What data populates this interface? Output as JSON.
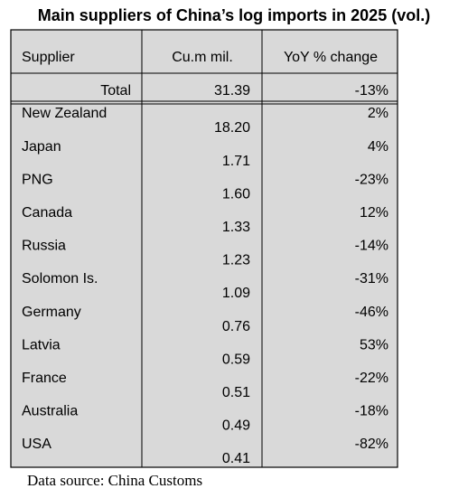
{
  "title": "Main suppliers of China’s log imports in 2025 (vol.)",
  "table": {
    "header": [
      "Supplier",
      "Cu.m mil.",
      "YoY % change"
    ],
    "total": [
      "Total",
      "31.39",
      "-13%"
    ],
    "rows": [
      [
        "New Zealand",
        "18.20",
        "2%"
      ],
      [
        "Japan",
        "1.71",
        "4%"
      ],
      [
        "PNG",
        "1.60",
        "-23%"
      ],
      [
        "Canada",
        "1.33",
        "12%"
      ],
      [
        "Russia",
        "1.23",
        "-14%"
      ],
      [
        "Solomon Is.",
        "1.09",
        "-31%"
      ],
      [
        "Germany",
        "0.76",
        "-46%"
      ],
      [
        "Latvia",
        "0.59",
        "53%"
      ],
      [
        "France",
        "0.51",
        "-22%"
      ],
      [
        "Australia",
        "0.49",
        "-18%"
      ],
      [
        "USA",
        "0.41",
        "-82%"
      ]
    ]
  },
  "source": "Data source: China Customs"
}
